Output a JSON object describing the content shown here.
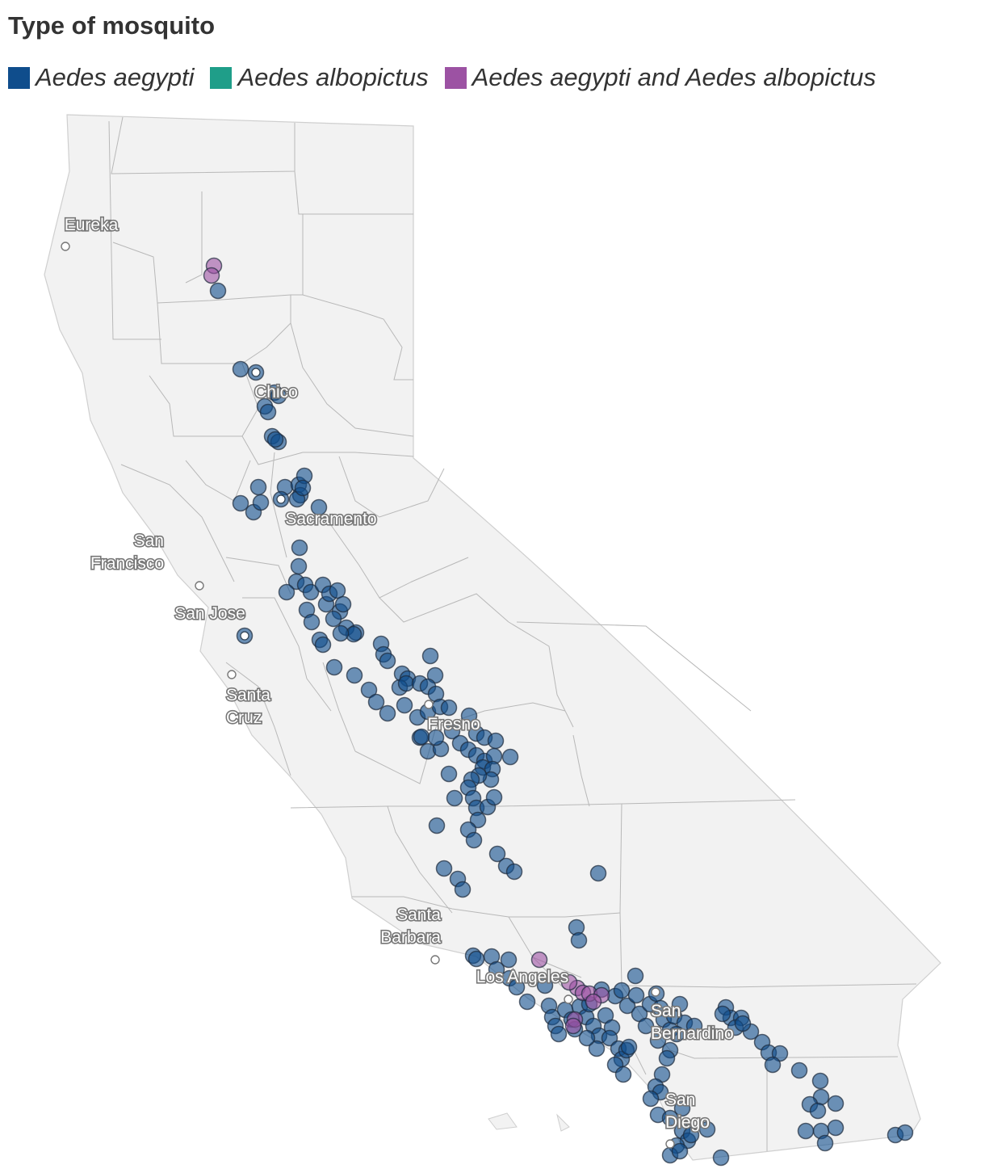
{
  "legend": {
    "title": "Type of mosquito",
    "items": [
      {
        "label": "Aedes aegypti",
        "color": "#0f4d8c"
      },
      {
        "label": "Aedes albopictus",
        "color": "#1f9e89"
      },
      {
        "label": "Aedes aegypti and Aedes albopictus",
        "color": "#9c52a3"
      }
    ]
  },
  "cities": [
    "Eureka",
    "Chico",
    "Sacramento",
    "San Francisco",
    "San Jose",
    "Santa Cruz",
    "Fresno",
    "Santa Barbara",
    "Los Angeles",
    "San Bernardino",
    "San Diego"
  ],
  "colors": {
    "land": "#f2f2f2",
    "border": "#b8b8b8",
    "aegypti": "#0f4d8c",
    "both": "#9c52a3"
  }
}
